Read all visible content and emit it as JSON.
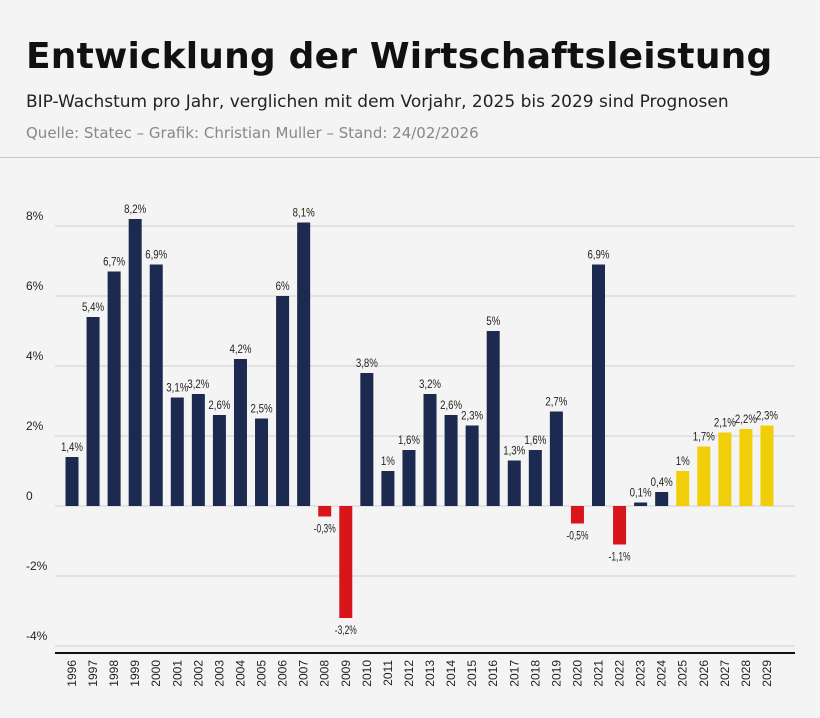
{
  "header": {
    "title": "Entwicklung der Wirtschaftsleistung",
    "subtitle": "BIP-Wachstum pro Jahr, verglichen mit dem Vorjahr, 2025 bis 2029 sind Prognosen",
    "source": "Quelle: Statec – Grafik: Christian Muller – Stand: 24/02/2026"
  },
  "chart_data": {
    "type": "bar",
    "categories": [
      "1996",
      "1997",
      "1998",
      "1999",
      "2000",
      "2001",
      "2002",
      "2003",
      "2004",
      "2005",
      "2006",
      "2007",
      "2008",
      "2009",
      "2010",
      "2011",
      "2012",
      "2013",
      "2014",
      "2015",
      "2016",
      "2017",
      "2018",
      "2019",
      "2020",
      "2021",
      "2022",
      "2023",
      "2024",
      "2025",
      "2026",
      "2027",
      "2028",
      "2029"
    ],
    "values": [
      1.4,
      5.4,
      6.7,
      8.2,
      6.9,
      3.1,
      3.2,
      2.6,
      4.2,
      2.5,
      6,
      8.1,
      -0.3,
      -3.2,
      3.8,
      1,
      1.6,
      3.2,
      2.6,
      2.3,
      5,
      1.3,
      1.6,
      2.7,
      -0.5,
      6.9,
      -1.1,
      0.1,
      0.4,
      1,
      1.7,
      2.1,
      2.2,
      2.3
    ],
    "data_labels": [
      "1,4%",
      "5,4%",
      "6,7%",
      "8,2%",
      "6,9%",
      "3,1%",
      "3,2%",
      "2,6%",
      "4,2%",
      "2,5%",
      "6%",
      "8,1%",
      "-0,3%",
      "-3,2%",
      "3,8%",
      "1%",
      "1,6%",
      "3,2%",
      "2,6%",
      "2,3%",
      "5%",
      "1,3%",
      "1,6%",
      "2,7%",
      "-0,5%",
      "6,9%",
      "-1,1%",
      "0,1%",
      "0,4%",
      "1%",
      "1,7%",
      "2,1%",
      "2,2%",
      "2,3%"
    ],
    "forecast_from": "2025",
    "ylim": [
      -4,
      8
    ],
    "yticks": [
      8,
      6,
      4,
      2,
      0,
      -2,
      -4
    ],
    "ytick_labels": [
      "8%",
      "6%",
      "4%",
      "2%",
      "0",
      "-2%",
      "-4%"
    ],
    "grid": true,
    "colors": {
      "positive": "#1b2a4e",
      "negative": "#d7151b",
      "forecast": "#f0cf0a",
      "grid": "#d0d0d0",
      "axis": "#111111"
    }
  }
}
